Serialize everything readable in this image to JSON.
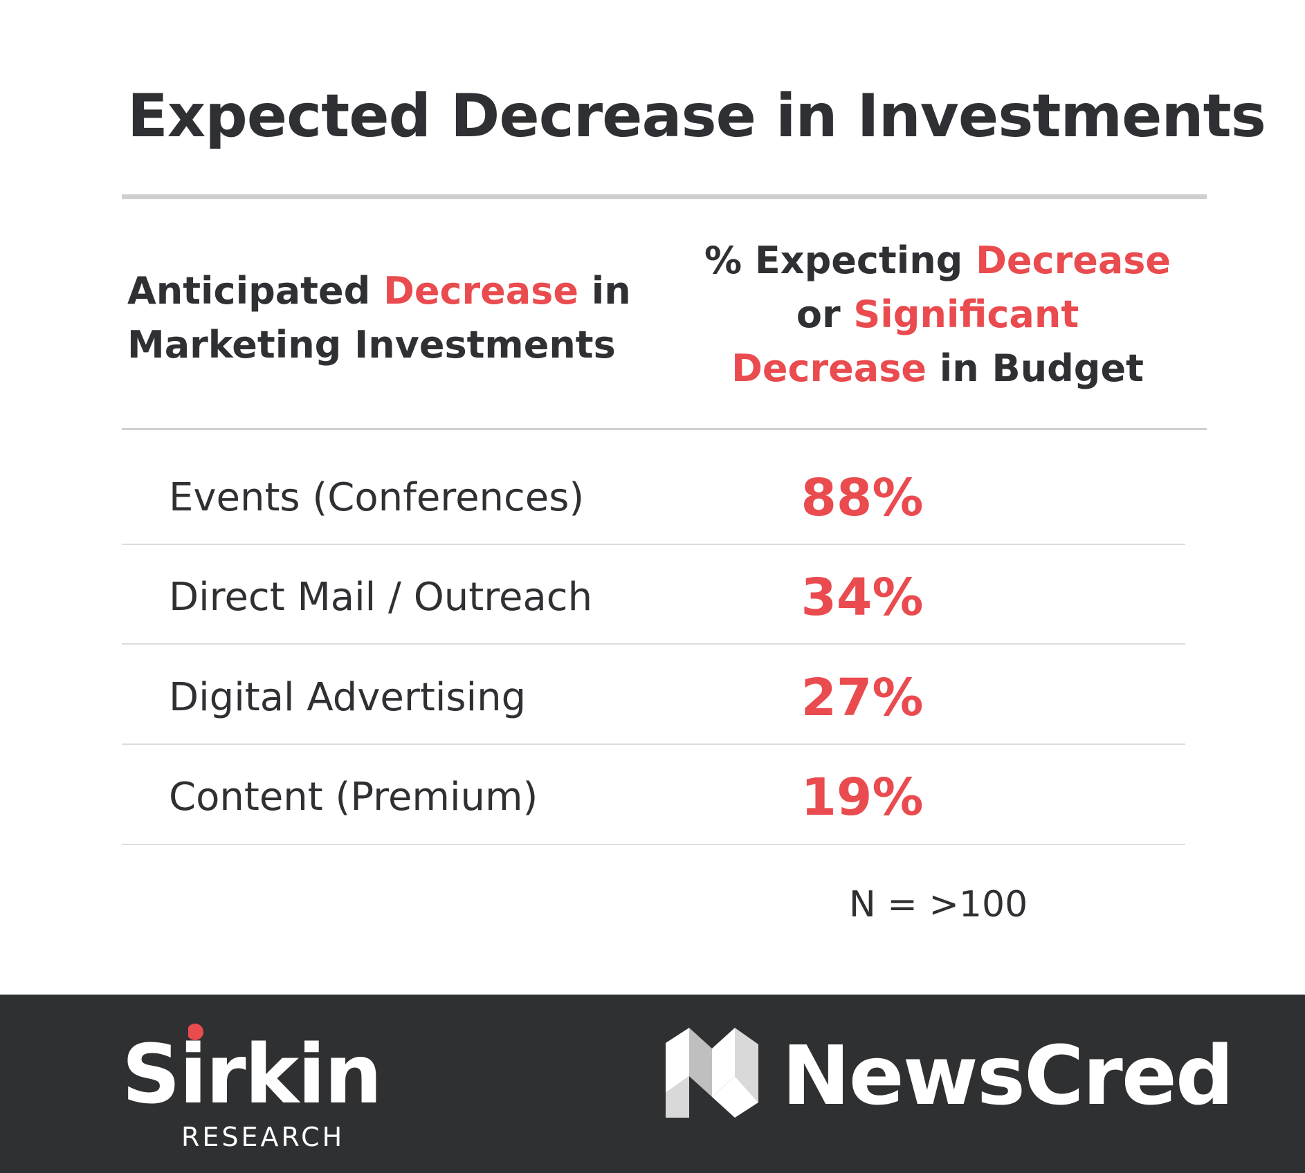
{
  "title": "Expected Decrease in Investments",
  "header": {
    "left_line1_a": "Anticipated ",
    "left_line1_b": "Decrease",
    "left_line1_c": " in",
    "left_line2": "Marketing Investments",
    "right_line1_a": "% Expecting ",
    "right_line1_b": "Decrease",
    "right_line2_a": "or ",
    "right_line2_b": "Significant",
    "right_line3_a": "Decrease",
    "right_line3_b": " in Budget"
  },
  "chart_data": {
    "type": "table",
    "columns": [
      "Anticipated Decrease in Marketing Investments",
      "% Expecting Decrease or Significant Decrease in Budget"
    ],
    "rows": [
      {
        "category": "Events (Conferences)",
        "value": "88%"
      },
      {
        "category": "Direct Mail / Outreach",
        "value": "34%"
      },
      {
        "category": "Digital Advertising",
        "value": "27%"
      },
      {
        "category": "Content (Premium)",
        "value": "19%"
      }
    ]
  },
  "note": "N = >100",
  "footer": {
    "sirkin_word": "Sirkin",
    "sirkin_sub": "RESEARCH",
    "newscred_word": "NewsCred"
  },
  "colors": {
    "accent": "#e94b4f",
    "text": "#2f3033",
    "footer_bg": "#2f3031"
  }
}
